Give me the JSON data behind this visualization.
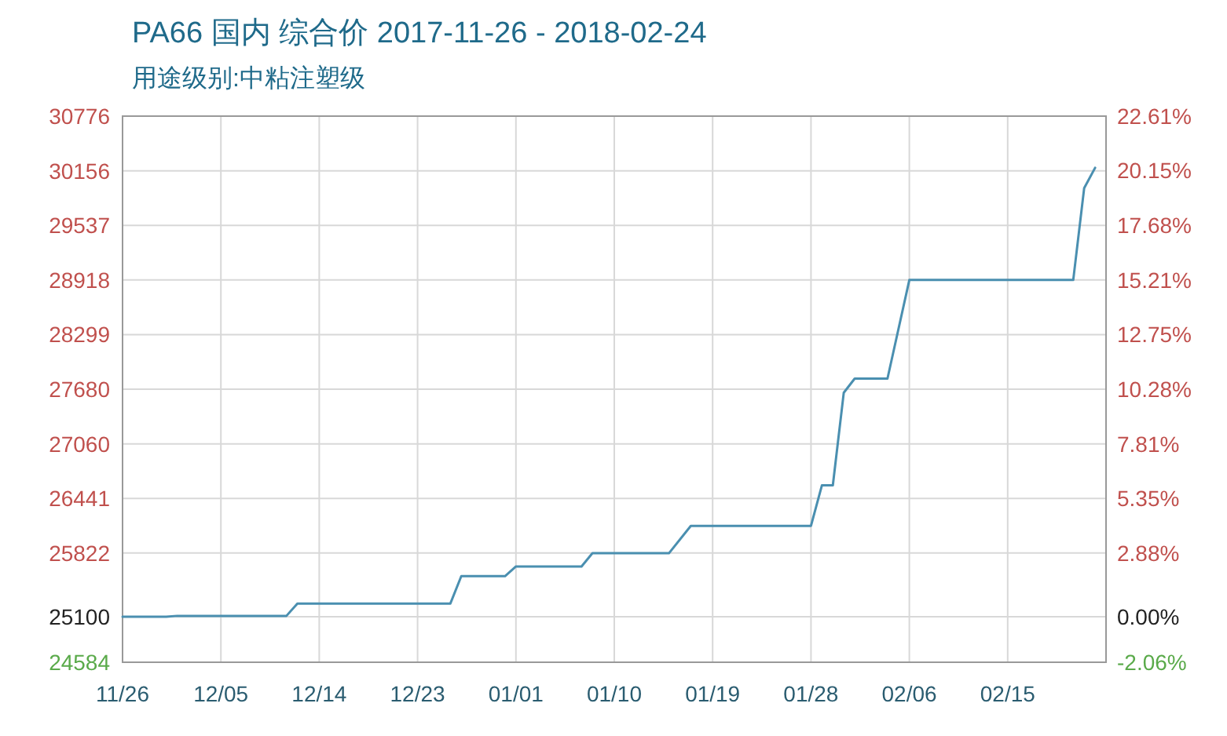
{
  "chart_data": {
    "type": "line",
    "title": "PA66 国内 综合价 2017-11-26 - 2018-02-24",
    "subtitle": "用途级别:中粘注塑级",
    "x": [
      "2017-11-26",
      "2017-11-30",
      "2017-12-01",
      "2017-12-11",
      "2017-12-12",
      "2017-12-26",
      "2017-12-27",
      "2017-12-31",
      "2018-01-01",
      "2018-01-07",
      "2018-01-08",
      "2018-01-15",
      "2018-01-17",
      "2018-01-28",
      "2018-01-29",
      "2018-01-30",
      "2018-01-31",
      "2018-02-01",
      "2018-02-04",
      "2018-02-06",
      "2018-02-21",
      "2018-02-22",
      "2018-02-23"
    ],
    "series": [
      {
        "color": "#4a8fb0",
        "values": [
          25100,
          25100,
          25110,
          25110,
          25250,
          25250,
          25560,
          25560,
          25670,
          25670,
          25820,
          25820,
          26130,
          26130,
          26590,
          26590,
          27640,
          27800,
          27800,
          28918,
          28918,
          29960,
          30190
        ]
      }
    ],
    "xlim": [
      "2017-11-26",
      "2018-02-24"
    ],
    "xticks": [
      {
        "value": "2017-11-26",
        "label": "11/26"
      },
      {
        "value": "2017-12-05",
        "label": "12/05"
      },
      {
        "value": "2017-12-14",
        "label": "12/14"
      },
      {
        "value": "2017-12-23",
        "label": "12/23"
      },
      {
        "value": "2018-01-01",
        "label": "01/01"
      },
      {
        "value": "2018-01-10",
        "label": "01/10"
      },
      {
        "value": "2018-01-19",
        "label": "01/19"
      },
      {
        "value": "2018-01-28",
        "label": "01/28"
      },
      {
        "value": "2018-02-06",
        "label": "02/06"
      },
      {
        "value": "2018-02-15",
        "label": "02/15"
      }
    ],
    "ylim": [
      24584,
      30776
    ],
    "yticks": [
      24584,
      25100,
      25822,
      26441,
      27060,
      27680,
      28299,
      28918,
      29537,
      30156,
      30776
    ],
    "y2lim": [
      -2.06,
      22.61
    ],
    "y2ticks": [
      {
        "value": -2.06,
        "label": "-2.06%"
      },
      {
        "value": 0,
        "label": "0.00%"
      },
      {
        "value": 2.88,
        "label": "2.88%"
      },
      {
        "value": 5.35,
        "label": "5.35%"
      },
      {
        "value": 7.81,
        "label": "7.81%"
      },
      {
        "value": 10.28,
        "label": "10.28%"
      },
      {
        "value": 12.75,
        "label": "12.75%"
      },
      {
        "value": 15.21,
        "label": "15.21%"
      },
      {
        "value": 17.68,
        "label": "17.68%"
      },
      {
        "value": 20.15,
        "label": "20.15%"
      },
      {
        "value": 22.61,
        "label": "22.61%"
      }
    ],
    "grid": true,
    "marker": "none",
    "line_style": "solid"
  }
}
